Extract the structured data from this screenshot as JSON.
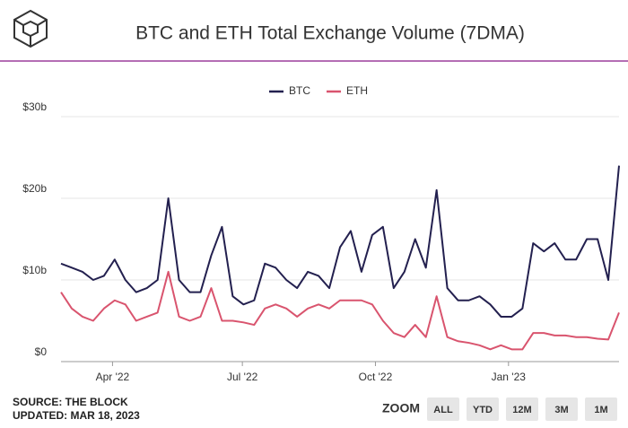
{
  "chart_data": {
    "type": "line",
    "title": "BTC and ETH Total Exchange Volume (7DMA)",
    "series": [
      {
        "name": "BTC",
        "color": "#23204f",
        "values": [
          12,
          11.5,
          11,
          10,
          10.5,
          12.5,
          10,
          8.5,
          9,
          10,
          20,
          10,
          8.5,
          8.5,
          13,
          16.5,
          8,
          7,
          7.5,
          12,
          11.5,
          10,
          9,
          11,
          10.5,
          9,
          14,
          16,
          11,
          15.5,
          16.5,
          9,
          11,
          15,
          11.5,
          21,
          9,
          7.5,
          7.5,
          8,
          7,
          5.5,
          5.5,
          6.5,
          14.5,
          13.5,
          14.5,
          12.5,
          12.5,
          15,
          15,
          10,
          24
        ]
      },
      {
        "name": "ETH",
        "color": "#d9546e",
        "values": [
          8.5,
          6.5,
          5.5,
          5,
          6.5,
          7.5,
          7,
          5,
          5.5,
          6,
          11,
          5.5,
          5,
          5.5,
          9,
          5,
          5,
          4.8,
          4.5,
          6.5,
          7,
          6.5,
          5.5,
          6.5,
          7,
          6.5,
          7.5,
          7.5,
          7.5,
          7,
          5,
          3.5,
          3,
          4.5,
          3,
          8,
          3,
          2.5,
          2.3,
          2,
          1.5,
          2,
          1.5,
          1.5,
          3.5,
          3.5,
          3.2,
          3.2,
          3,
          3,
          2.8,
          2.7,
          6
        ]
      }
    ],
    "xlim": [
      0,
      52
    ],
    "xticks": [
      {
        "value": 4.8,
        "label": "Apr '22"
      },
      {
        "value": 16.9,
        "label": "Jul '22"
      },
      {
        "value": 29.3,
        "label": "Oct '22"
      },
      {
        "value": 41.7,
        "label": "Jan '23"
      }
    ],
    "ylim": [
      0,
      30
    ],
    "yticks": [
      {
        "value": 0,
        "label": "$0"
      },
      {
        "value": 10,
        "label": "$10b"
      },
      {
        "value": 20,
        "label": "$20b"
      },
      {
        "value": 30,
        "label": "$30b"
      }
    ],
    "grid": true,
    "legend": "top"
  },
  "footer": {
    "source": "SOURCE: THE BLOCK",
    "updated": "UPDATED: MAR 18, 2023"
  },
  "zoom": {
    "label": "ZOOM",
    "buttons": [
      "ALL",
      "YTD",
      "12M",
      "3M",
      "1M"
    ]
  }
}
